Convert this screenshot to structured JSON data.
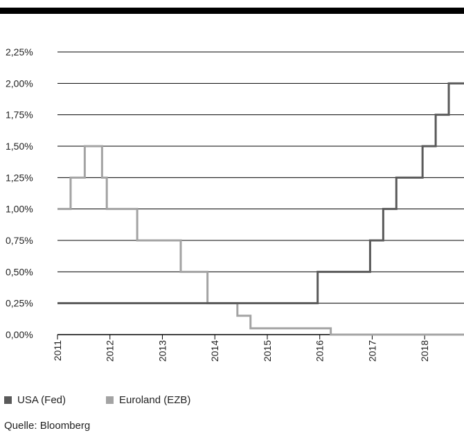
{
  "chart_data": {
    "type": "line",
    "step": true,
    "ylim": [
      0,
      2.25
    ],
    "yticks": [
      0,
      0.25,
      0.5,
      0.75,
      1.0,
      1.25,
      1.5,
      1.75,
      2.0,
      2.25
    ],
    "ytick_labels": [
      "0,00%",
      "0,25%",
      "0,50%",
      "0,75%",
      "1,00%",
      "1,25%",
      "1,50%",
      "1,75%",
      "2,00%",
      "2,25%"
    ],
    "xlim": [
      2011,
      2018.75
    ],
    "xticks": [
      2011,
      2012,
      2013,
      2014,
      2015,
      2016,
      2017,
      2018
    ],
    "xtick_labels": [
      "2011",
      "2012",
      "2013",
      "2014",
      "2015",
      "2016",
      "2017",
      "2018"
    ],
    "grid": true,
    "series": [
      {
        "name": "USA (Fed)",
        "color": "#5a5a5a",
        "x": [
          2011.0,
          2015.96,
          2016.96,
          2017.21,
          2017.46,
          2017.96,
          2018.21,
          2018.46,
          2018.75
        ],
        "y": [
          0.25,
          0.5,
          0.75,
          1.0,
          1.25,
          1.5,
          1.75,
          2.0,
          2.0
        ]
      },
      {
        "name": "Euroland (EZB)",
        "color": "#a3a3a3",
        "x": [
          2011.0,
          2011.25,
          2011.52,
          2011.85,
          2011.94,
          2012.52,
          2013.35,
          2013.86,
          2014.43,
          2014.68,
          2016.21,
          2018.75
        ],
        "y": [
          1.0,
          1.25,
          1.5,
          1.25,
          1.0,
          0.75,
          0.5,
          0.25,
          0.15,
          0.05,
          0.0,
          0.0
        ]
      }
    ]
  },
  "legend": {
    "items": [
      {
        "label": "USA (Fed)",
        "color": "#5a5a5a"
      },
      {
        "label": "Euroland (EZB)",
        "color": "#a3a3a3"
      }
    ]
  },
  "source": "Quelle: Bloomberg"
}
